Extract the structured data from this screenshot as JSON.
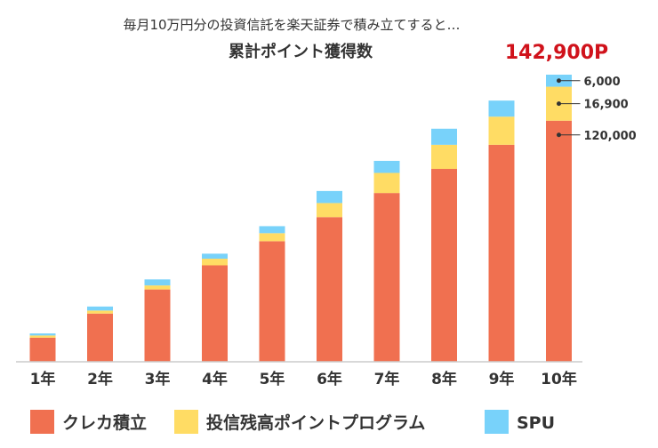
{
  "chart_data": {
    "type": "bar",
    "stacked": true,
    "subtitle": "毎月10万円分の投資信託を楽天証券で積み立てすると…",
    "title": "累計ポイント獲得数",
    "total_label": "142,900P",
    "categories": [
      "1年",
      "2年",
      "3年",
      "4年",
      "5年",
      "6年",
      "7年",
      "8年",
      "9年",
      "10年"
    ],
    "series": [
      {
        "name": "クレカ積立",
        "color": "#f07050",
        "values": [
          12000,
          24000,
          36000,
          48000,
          60000,
          72000,
          84000,
          96000,
          108000,
          120000
        ]
      },
      {
        "name": "投信残高ポイントプログラム",
        "color": "#ffdc64",
        "values": [
          1100,
          1500,
          2000,
          3300,
          4000,
          7000,
          10000,
          12000,
          14000,
          16900
        ]
      },
      {
        "name": "SPU",
        "color": "#78d2fa",
        "values": [
          1000,
          2000,
          3000,
          2500,
          3500,
          6000,
          6000,
          8000,
          8000,
          6000
        ]
      }
    ],
    "annotations": [
      "6,000",
      "16,900",
      "120,000"
    ],
    "ylim": [
      0,
      142900
    ],
    "legend_position": "bottom",
    "grid": false
  }
}
